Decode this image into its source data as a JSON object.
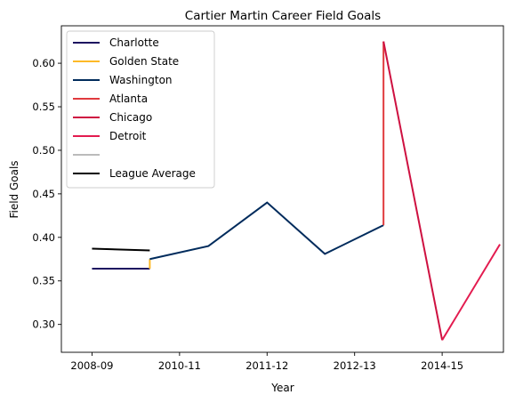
{
  "chart_data": {
    "type": "line",
    "title": "Cartier Martin Career Field Goals",
    "xlabel": "Year",
    "ylabel": "Field Goals",
    "xlim": [
      -0.35,
      4.7
    ],
    "ylim": [
      0.268,
      0.643
    ],
    "x_ticks": [
      {
        "x": 0,
        "label": "2008-09"
      },
      {
        "x": 1,
        "label": "2010-11"
      },
      {
        "x": 2,
        "label": "2011-12"
      },
      {
        "x": 3,
        "label": "2012-13"
      },
      {
        "x": 4,
        "label": "2014-15"
      }
    ],
    "y_ticks": [
      0.3,
      0.35,
      0.4,
      0.45,
      0.5,
      0.55,
      0.6
    ],
    "y_tick_labels": [
      "0.30",
      "0.35",
      "0.40",
      "0.45",
      "0.50",
      "0.55",
      "0.60"
    ],
    "grid": false,
    "legend_position": "upper-left",
    "series": [
      {
        "name": "Charlotte",
        "color": "#1d1160",
        "points": [
          [
            0,
            0.364
          ],
          [
            0.66,
            0.364
          ]
        ]
      },
      {
        "name": "Golden State",
        "color": "#fdb927",
        "points": [
          [
            0.66,
            0.364
          ],
          [
            0.66,
            0.375
          ]
        ]
      },
      {
        "name": "Washington",
        "color": "#002b5c",
        "points": [
          [
            0.66,
            0.375
          ],
          [
            1.33,
            0.39
          ],
          [
            2.0,
            0.44
          ],
          [
            2.66,
            0.381
          ],
          [
            3.33,
            0.414
          ]
        ]
      },
      {
        "name": "Atlanta",
        "color": "#e03a3e",
        "points": [
          [
            3.33,
            0.414
          ],
          [
            3.33,
            0.625
          ]
        ]
      },
      {
        "name": "Chicago",
        "color": "#ce1141",
        "points": [
          [
            3.33,
            0.625
          ],
          [
            4.0,
            0.282
          ]
        ]
      },
      {
        "name": "Detroit",
        "color": "#e31b4f",
        "points": [
          [
            4.0,
            0.282
          ],
          [
            4.66,
            0.392
          ]
        ]
      },
      {
        "name": "",
        "color": "#bbbbbb",
        "points": []
      },
      {
        "name": "League Average",
        "color": "#000000",
        "points": [
          [
            0,
            0.387
          ],
          [
            0.66,
            0.385
          ]
        ]
      }
    ]
  }
}
